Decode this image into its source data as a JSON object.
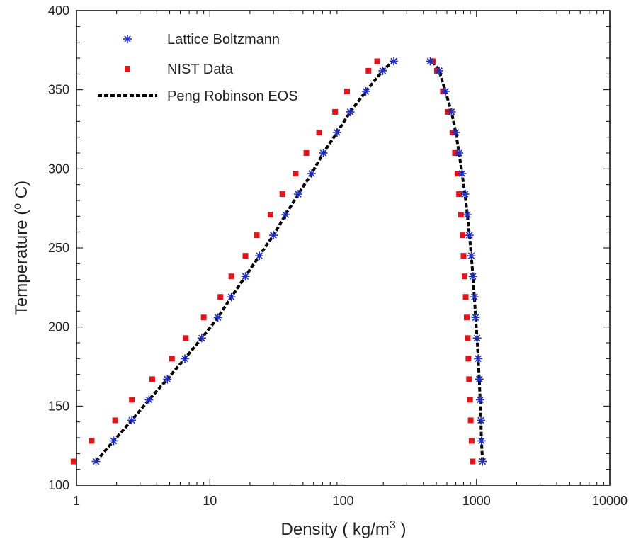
{
  "chart_data": {
    "type": "scatter",
    "x_scale": "log",
    "xlim": [
      1,
      10000
    ],
    "ylim": [
      100,
      400
    ],
    "x_ticks": [
      1,
      10,
      100,
      1000,
      10000
    ],
    "x_tick_labels": [
      "1",
      "10",
      "100",
      "1000",
      "10000"
    ],
    "y_ticks": [
      100,
      150,
      200,
      250,
      300,
      350,
      400
    ],
    "y_tick_labels": [
      "100",
      "150",
      "200",
      "250",
      "300",
      "350",
      "400"
    ],
    "xlabel_prefix": "Density ( kg/m",
    "xlabel_sup": "3",
    "xlabel_suffix": " )",
    "ylabel_prefix": "Temperature (",
    "ylabel_sup": "o",
    "ylabel_suffix": " C)",
    "grid": false,
    "legend_position": "top-left",
    "series": [
      {
        "name": "Lattice Boltzmann",
        "marker": "asterisk",
        "color": "#1f2fbf",
        "points": [
          [
            1.4,
            115
          ],
          [
            1.9,
            128
          ],
          [
            2.6,
            141
          ],
          [
            3.5,
            154
          ],
          [
            4.8,
            167
          ],
          [
            6.5,
            180
          ],
          [
            8.7,
            193
          ],
          [
            11.5,
            206
          ],
          [
            14.5,
            219
          ],
          [
            18.5,
            232
          ],
          [
            23.5,
            245
          ],
          [
            30,
            258
          ],
          [
            37,
            271
          ],
          [
            46,
            284
          ],
          [
            58,
            297
          ],
          [
            71,
            310
          ],
          [
            90,
            323
          ],
          [
            113,
            336
          ],
          [
            148,
            349
          ],
          [
            198,
            362
          ],
          [
            240,
            368
          ],
          [
            450,
            368
          ],
          [
            525,
            362
          ],
          [
            585,
            349
          ],
          [
            650,
            336
          ],
          [
            700,
            323
          ],
          [
            740,
            310
          ],
          [
            780,
            297
          ],
          [
            820,
            284
          ],
          [
            855,
            271
          ],
          [
            885,
            258
          ],
          [
            915,
            245
          ],
          [
            940,
            232
          ],
          [
            965,
            219
          ],
          [
            985,
            206
          ],
          [
            1010,
            193
          ],
          [
            1030,
            180
          ],
          [
            1050,
            167
          ],
          [
            1065,
            154
          ],
          [
            1080,
            141
          ],
          [
            1090,
            128
          ],
          [
            1110,
            115
          ]
        ]
      },
      {
        "name": "NIST Data",
        "marker": "square",
        "color": "#e0161b",
        "points": [
          [
            0.95,
            115
          ],
          [
            1.3,
            128
          ],
          [
            1.95,
            141
          ],
          [
            2.6,
            154
          ],
          [
            3.7,
            167
          ],
          [
            5.2,
            180
          ],
          [
            6.6,
            193
          ],
          [
            9,
            206
          ],
          [
            12,
            219
          ],
          [
            14.5,
            232
          ],
          [
            18.5,
            245
          ],
          [
            22.5,
            258
          ],
          [
            28.5,
            271
          ],
          [
            35,
            284
          ],
          [
            44,
            297
          ],
          [
            53,
            310
          ],
          [
            66,
            323
          ],
          [
            87,
            336
          ],
          [
            107,
            349
          ],
          [
            155,
            362
          ],
          [
            180,
            368
          ],
          [
            470,
            368
          ],
          [
            505,
            362
          ],
          [
            560,
            349
          ],
          [
            610,
            336
          ],
          [
            660,
            323
          ],
          [
            690,
            310
          ],
          [
            720,
            297
          ],
          [
            740,
            284
          ],
          [
            765,
            271
          ],
          [
            785,
            258
          ],
          [
            800,
            245
          ],
          [
            815,
            232
          ],
          [
            830,
            219
          ],
          [
            845,
            206
          ],
          [
            860,
            193
          ],
          [
            870,
            180
          ],
          [
            880,
            167
          ],
          [
            895,
            154
          ],
          [
            905,
            141
          ],
          [
            920,
            128
          ],
          [
            935,
            115
          ]
        ]
      },
      {
        "name": "Peng Robinson EOS",
        "marker": "dashed-line",
        "color": "#000000",
        "segments": [
          [
            [
              1.4,
              115
            ],
            [
              1.9,
              128
            ],
            [
              2.6,
              141
            ],
            [
              3.5,
              154
            ],
            [
              4.8,
              167
            ],
            [
              6.5,
              180
            ],
            [
              8.7,
              193
            ],
            [
              11.5,
              206
            ],
            [
              14.5,
              219
            ],
            [
              18.5,
              232
            ],
            [
              23.5,
              245
            ],
            [
              30,
              258
            ],
            [
              37,
              271
            ],
            [
              46,
              284
            ],
            [
              58,
              297
            ],
            [
              71,
              310
            ],
            [
              90,
              323
            ],
            [
              113,
              336
            ],
            [
              148,
              349
            ],
            [
              198,
              362
            ],
            [
              235,
              368
            ]
          ],
          [
            [
              470,
              368
            ],
            [
              525,
              362
            ],
            [
              585,
              349
            ],
            [
              650,
              336
            ],
            [
              700,
              323
            ],
            [
              740,
              310
            ],
            [
              780,
              297
            ],
            [
              820,
              284
            ],
            [
              855,
              271
            ],
            [
              885,
              258
            ],
            [
              915,
              245
            ],
            [
              940,
              232
            ],
            [
              965,
              219
            ],
            [
              985,
              206
            ],
            [
              1010,
              193
            ],
            [
              1030,
              180
            ],
            [
              1050,
              167
            ],
            [
              1065,
              154
            ],
            [
              1080,
              141
            ],
            [
              1090,
              128
            ],
            [
              1110,
              115
            ]
          ]
        ]
      }
    ]
  }
}
